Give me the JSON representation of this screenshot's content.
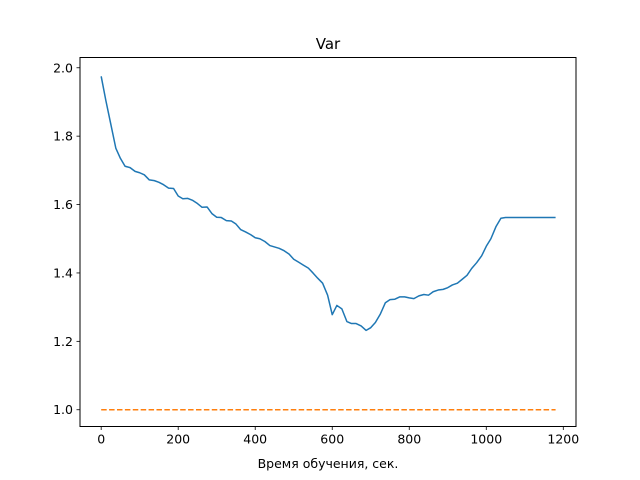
{
  "chart_data": {
    "type": "line",
    "title": "Var",
    "xlabel": "Время обучения, сек.",
    "ylabel": "",
    "xlim": [
      -55,
      1233
    ],
    "ylim": [
      0.951,
      2.03
    ],
    "xticks": [
      0,
      200,
      400,
      600,
      800,
      1000,
      1200
    ],
    "xtick_labels": [
      "0",
      "200",
      "400",
      "600",
      "800",
      "1000",
      "1200"
    ],
    "yticks": [
      1.0,
      1.2,
      1.4,
      1.6,
      1.8,
      2.0
    ],
    "ytick_labels": [
      "1.0",
      "1.2",
      "1.4",
      "1.6",
      "1.8",
      "2.0"
    ],
    "grid": false,
    "series": [
      {
        "color": "#1f77b4",
        "style": "solid",
        "x": [
          0,
          12,
          25,
          38,
          50,
          62,
          75,
          88,
          100,
          112,
          125,
          138,
          150,
          162,
          175,
          188,
          200,
          212,
          225,
          238,
          250,
          262,
          275,
          288,
          300,
          312,
          325,
          338,
          350,
          362,
          375,
          388,
          400,
          412,
          425,
          438,
          450,
          462,
          475,
          488,
          500,
          512,
          525,
          538,
          550,
          562,
          575,
          588,
          600,
          612,
          625,
          638,
          650,
          662,
          675,
          688,
          700,
          712,
          725,
          738,
          750,
          762,
          775,
          788,
          800,
          812,
          825,
          838,
          850,
          862,
          875,
          888,
          900,
          912,
          925,
          938,
          950,
          962,
          975,
          988,
          1000,
          1012,
          1025,
          1038,
          1050,
          1062,
          1075,
          1088,
          1100,
          1112,
          1125,
          1138,
          1150,
          1162,
          1175,
          1180
        ],
        "y": [
          1.975,
          1.905,
          1.835,
          1.765,
          1.735,
          1.712,
          1.708,
          1.697,
          1.693,
          1.687,
          1.672,
          1.67,
          1.665,
          1.658,
          1.648,
          1.647,
          1.625,
          1.617,
          1.618,
          1.612,
          1.603,
          1.592,
          1.593,
          1.573,
          1.563,
          1.562,
          1.553,
          1.552,
          1.543,
          1.527,
          1.52,
          1.512,
          1.503,
          1.5,
          1.492,
          1.48,
          1.476,
          1.472,
          1.465,
          1.455,
          1.44,
          1.432,
          1.423,
          1.414,
          1.4,
          1.385,
          1.37,
          1.335,
          1.278,
          1.305,
          1.295,
          1.258,
          1.252,
          1.252,
          1.245,
          1.232,
          1.24,
          1.255,
          1.28,
          1.313,
          1.322,
          1.323,
          1.33,
          1.33,
          1.327,
          1.325,
          1.333,
          1.337,
          1.335,
          1.345,
          1.35,
          1.352,
          1.357,
          1.365,
          1.37,
          1.382,
          1.393,
          1.413,
          1.43,
          1.45,
          1.478,
          1.5,
          1.535,
          1.56,
          1.562,
          1.562,
          1.562,
          1.562,
          1.562,
          1.562,
          1.562,
          1.562,
          1.562,
          1.562,
          1.562,
          1.562
        ]
      },
      {
        "color": "#ff7f0e",
        "style": "dashed",
        "x": [
          0,
          1180
        ],
        "y": [
          1.0,
          1.0
        ]
      }
    ]
  }
}
